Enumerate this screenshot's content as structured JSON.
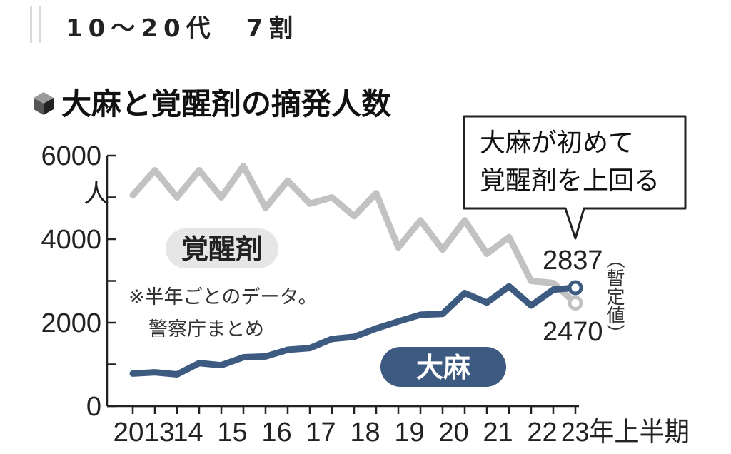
{
  "heading": "10〜20代　7割",
  "chart_data": {
    "type": "line",
    "title": "大麻と覚醒剤の摘発人数",
    "ylabel": "人",
    "ylim": [
      0,
      6000
    ],
    "yticks": [
      0,
      2000,
      4000,
      6000
    ],
    "y_tick_labels": [
      "0",
      "2000",
      "4000",
      "6000"
    ],
    "x": [
      "2013上",
      "2013下",
      "2014上",
      "2014下",
      "2015上",
      "2015下",
      "2016上",
      "2016下",
      "2017上",
      "2017下",
      "2018上",
      "2018下",
      "2019上",
      "2019下",
      "2020上",
      "2020下",
      "2021上",
      "2021下",
      "2022上",
      "2022下",
      "2023上"
    ],
    "x_tick_labels": [
      "2013",
      "14",
      "15",
      "16",
      "17",
      "18",
      "19",
      "20",
      "21",
      "22",
      "23年上半期"
    ],
    "series": [
      {
        "name": "覚醒剤",
        "color": "#c2c2c2",
        "values": [
          5050,
          5650,
          5000,
          5650,
          5000,
          5750,
          4750,
          5400,
          4850,
          5000,
          4550,
          5100,
          3800,
          4450,
          3750,
          4450,
          3650,
          4050,
          3000,
          2950,
          2470
        ]
      },
      {
        "name": "大麻",
        "color": "#3d5a80",
        "values": [
          780,
          810,
          760,
          1030,
          980,
          1170,
          1190,
          1350,
          1390,
          1610,
          1660,
          1860,
          2030,
          2190,
          2210,
          2710,
          2480,
          2870,
          2410,
          2790,
          2837
        ]
      }
    ],
    "value_labels": {
      "cannabis_last": "2837",
      "meth_last": "2470"
    },
    "provisional_label": "（暫定値）",
    "note_lines": [
      "※半年ごとのデータ。",
      "警察庁まとめ"
    ],
    "callout_lines": [
      "大麻が初めて",
      "覚醒剤を上回る"
    ],
    "grid": false
  }
}
